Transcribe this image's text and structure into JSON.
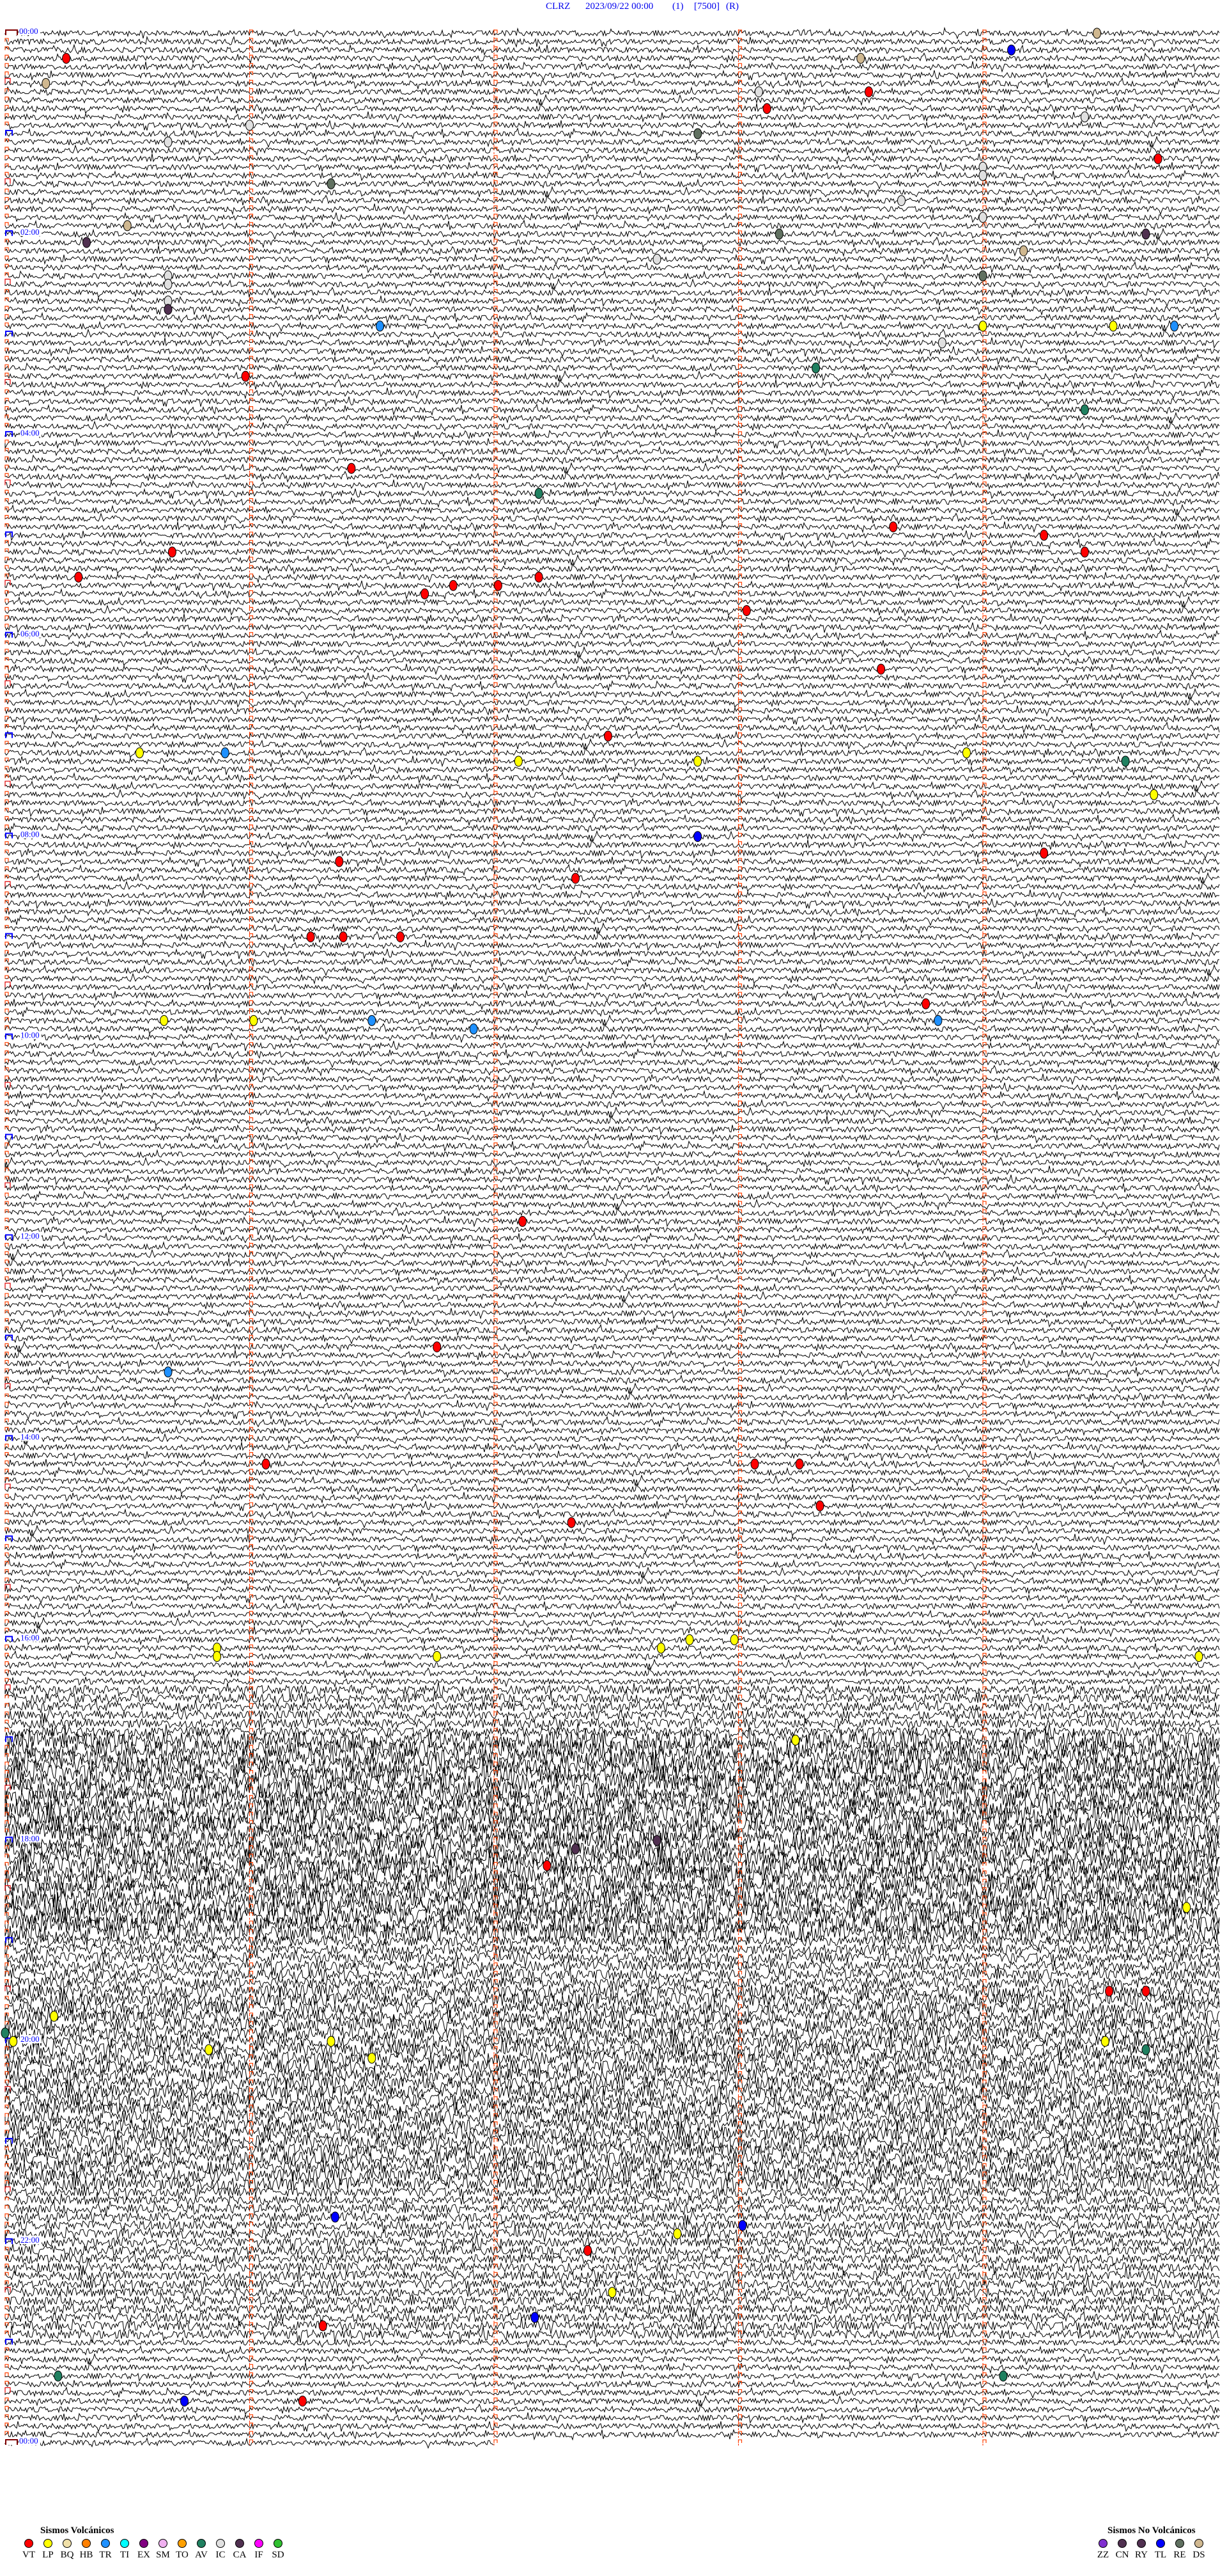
{
  "header": {
    "station": "CLRZ",
    "datetime": "2023/09/22 00:00",
    "channel": "(1)",
    "scale": "[7500]",
    "mode": "(R)"
  },
  "chart_data": {
    "type": "line",
    "subtype": "helicorder",
    "start": "2023/09/22 00:00",
    "minutes_per_line": 5,
    "time_labels": [
      "00:00",
      "02:00",
      "04:00",
      "06:00",
      "08:00",
      "10:00",
      "12:00",
      "14:00",
      "16:00",
      "18:00",
      "20:00",
      "22:00",
      "00:00"
    ],
    "grid": "dashed vertical minute lines",
    "trace_color": "#000000",
    "events": [
      {
        "time": "00:04:28",
        "type": "DS"
      },
      {
        "time": "00:14:07",
        "type": "TL"
      },
      {
        "time": "00:15:15",
        "type": "VT"
      },
      {
        "time": "00:18:30",
        "type": "DS"
      },
      {
        "time": "00:38:32",
        "type": "VT"
      },
      {
        "time": "00:30:10",
        "type": "DS"
      },
      {
        "time": "00:38:05",
        "type": "IC"
      },
      {
        "time": "00:48:07",
        "type": "VT"
      },
      {
        "time": "00:54:25",
        "type": "IC"
      },
      {
        "time": "00:56:00",
        "type": "IC"
      },
      {
        "time": "01:02:50",
        "type": "RE"
      },
      {
        "time": "01:05:40",
        "type": "IC"
      },
      {
        "time": "01:19:43",
        "type": "VT"
      },
      {
        "time": "01:24:00",
        "type": "IC"
      },
      {
        "time": "01:29:00",
        "type": "IC"
      },
      {
        "time": "01:31:20",
        "type": "RE"
      },
      {
        "time": "01:43:40",
        "type": "IC"
      },
      {
        "time": "01:54:00",
        "type": "IC"
      },
      {
        "time": "01:55:30",
        "type": "DS"
      },
      {
        "time": "02:03:10",
        "type": "RE"
      },
      {
        "time": "02:04:40",
        "type": "CA"
      },
      {
        "time": "02:05:20",
        "type": "CA"
      },
      {
        "time": "02:14:10",
        "type": "DS"
      },
      {
        "time": "02:17:40",
        "type": "IC"
      },
      {
        "time": "02:25:40",
        "type": "IC"
      },
      {
        "time": "02:29:00",
        "type": "RE"
      },
      {
        "time": "02:30:40",
        "type": "IC"
      },
      {
        "time": "02:40:40",
        "type": "IC"
      },
      {
        "time": "02:45:40",
        "type": "CA"
      },
      {
        "time": "02:56:32",
        "type": "TR"
      },
      {
        "time": "02:59:00",
        "type": "LP"
      },
      {
        "time": "02:59:32",
        "type": "LP"
      },
      {
        "time": "02:59:47",
        "type": "TR"
      },
      {
        "time": "03:08:50",
        "type": "IC"
      },
      {
        "time": "03:23:19",
        "type": "AV"
      },
      {
        "time": "03:25:59",
        "type": "VT"
      },
      {
        "time": "03:49:25",
        "type": "AV"
      },
      {
        "time": "04:21:25",
        "type": "VT"
      },
      {
        "time": "04:37:11",
        "type": "AV"
      },
      {
        "time": "04:58:38",
        "type": "VT"
      },
      {
        "time": "05:04:15",
        "type": "VT"
      },
      {
        "time": "05:10:41",
        "type": "VT"
      },
      {
        "time": "05:14:25",
        "type": "VT"
      },
      {
        "time": "05:25:18",
        "type": "VT"
      },
      {
        "time": "05:27:11",
        "type": "VT"
      },
      {
        "time": "05:31:50",
        "type": "VT"
      },
      {
        "time": "05:32:01",
        "type": "VT"
      },
      {
        "time": "05:36:43",
        "type": "VT"
      },
      {
        "time": "05:48:02",
        "type": "VT"
      },
      {
        "time": "06:23:35",
        "type": "VT"
      },
      {
        "time": "07:02:28",
        "type": "VT"
      },
      {
        "time": "07:10:33",
        "type": "LP"
      },
      {
        "time": "07:10:54",
        "type": "TR"
      },
      {
        "time": "07:13:56",
        "type": "LP"
      },
      {
        "time": "07:17:06",
        "type": "LP"
      },
      {
        "time": "07:17:50",
        "type": "LP"
      },
      {
        "time": "07:19:35",
        "type": "AV"
      },
      {
        "time": "07:39:42",
        "type": "LP"
      },
      {
        "time": "08:02:50",
        "type": "TL"
      },
      {
        "time": "08:14:15",
        "type": "VT"
      },
      {
        "time": "08:16:22",
        "type": "VT"
      },
      {
        "time": "08:27:20",
        "type": "VT"
      },
      {
        "time": "09:01:15",
        "type": "VT"
      },
      {
        "time": "09:01:23",
        "type": "VT"
      },
      {
        "time": "09:01:37",
        "type": "VT"
      },
      {
        "time": "09:43:46",
        "type": "VT"
      },
      {
        "time": "09:50:39",
        "type": "LP"
      },
      {
        "time": "09:51:01",
        "type": "LP"
      },
      {
        "time": "09:51:30",
        "type": "TR"
      },
      {
        "time": "09:53:49",
        "type": "TR"
      },
      {
        "time": "09:56:55",
        "type": "TR"
      },
      {
        "time": "11:52:07",
        "type": "VT"
      },
      {
        "time": "13:06:46",
        "type": "VT"
      },
      {
        "time": "13:20:40",
        "type": "TR"
      },
      {
        "time": "14:16:04",
        "type": "VT"
      },
      {
        "time": "14:18:04",
        "type": "VT"
      },
      {
        "time": "14:18:15",
        "type": "VT"
      },
      {
        "time": "14:43:20",
        "type": "VT"
      },
      {
        "time": "14:52:19",
        "type": "VT"
      },
      {
        "time": "16:02:48",
        "type": "LP"
      },
      {
        "time": "16:02:59",
        "type": "LP"
      },
      {
        "time": "16:05:52",
        "type": "LP"
      },
      {
        "time": "16:07:41",
        "type": "LP"
      },
      {
        "time": "16:10:52",
        "type": "LP"
      },
      {
        "time": "16:11:46",
        "type": "LP"
      },
      {
        "time": "16:14:53",
        "type": "LP"
      },
      {
        "time": "17:03:14",
        "type": "LP"
      },
      {
        "time": "18:02:40",
        "type": "CA"
      },
      {
        "time": "18:07:20",
        "type": "CA"
      },
      {
        "time": "18:17:13",
        "type": "VT"
      },
      {
        "time": "18:44:50",
        "type": "LP"
      },
      {
        "time": "19:34:31",
        "type": "VT"
      },
      {
        "time": "19:34:40",
        "type": "VT"
      },
      {
        "time": "19:45:12",
        "type": "LP"
      },
      {
        "time": "19:55:00",
        "type": "AV"
      },
      {
        "time": "20:00:02",
        "type": "LP"
      },
      {
        "time": "20:01:20",
        "type": "LP"
      },
      {
        "time": "20:04:30",
        "type": "LP"
      },
      {
        "time": "20:05:50",
        "type": "LP"
      },
      {
        "time": "20:09:40",
        "type": "AV"
      },
      {
        "time": "20:11:30",
        "type": "LP"
      },
      {
        "time": "21:46:21",
        "type": "TL"
      },
      {
        "time": "21:53:01",
        "type": "TL"
      },
      {
        "time": "21:57:45",
        "type": "LP"
      },
      {
        "time": "22:07:23",
        "type": "VT"
      },
      {
        "time": "22:32:29",
        "type": "LP"
      },
      {
        "time": "22:47:10",
        "type": "TL"
      },
      {
        "time": "22:51:18",
        "type": "VT"
      },
      {
        "time": "23:20:13",
        "type": "AV"
      },
      {
        "time": "23:24:05",
        "type": "AV"
      },
      {
        "time": "23:35:44",
        "type": "TL"
      },
      {
        "time": "23:36:13",
        "type": "VT"
      }
    ]
  },
  "legend": {
    "volcanic_title": "Sismos Volcánicos",
    "volcanic": [
      {
        "code": "VT",
        "color": "#ff0000"
      },
      {
        "code": "LP",
        "color": "#ffff00"
      },
      {
        "code": "BQ",
        "color": "#f0e0a8"
      },
      {
        "code": "HB",
        "color": "#ff8000"
      },
      {
        "code": "TR",
        "color": "#1e90ff"
      },
      {
        "code": "TI",
        "color": "#00ffff"
      },
      {
        "code": "EX",
        "color": "#800080"
      },
      {
        "code": "SM",
        "color": "#f0b0f0"
      },
      {
        "code": "TO",
        "color": "#ffa000"
      },
      {
        "code": "AV",
        "color": "#208060"
      },
      {
        "code": "IC",
        "color": "#e0e0e0"
      },
      {
        "code": "CA",
        "color": "#503050"
      },
      {
        "code": "IF",
        "color": "#ff00ff"
      },
      {
        "code": "SD",
        "color": "#30c030"
      }
    ],
    "non_volcanic_title": "Sismos No Volcánicos",
    "non_volcanic": [
      {
        "code": "ZZ",
        "color": "#8030d0"
      },
      {
        "code": "CN",
        "color": "#503050"
      },
      {
        "code": "RY",
        "color": "#503050"
      },
      {
        "code": "TL",
        "color": "#0000ff"
      },
      {
        "code": "RE",
        "color": "#607060"
      },
      {
        "code": "DS",
        "color": "#d0b890"
      }
    ]
  }
}
